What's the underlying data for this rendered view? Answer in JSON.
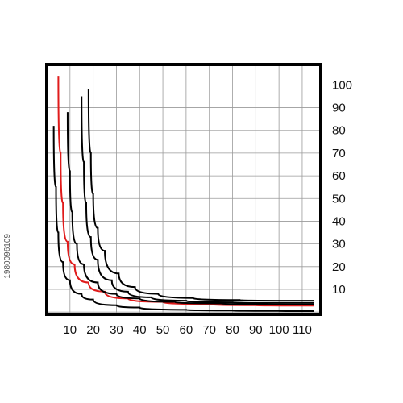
{
  "watermark_id": "1980096109",
  "chart_data": {
    "type": "line",
    "title": "",
    "xlabel": "",
    "ylabel": "",
    "xlim": [
      0,
      118
    ],
    "ylim": [
      -1,
      109
    ],
    "x_ticks": [
      10,
      20,
      30,
      40,
      50,
      60,
      70,
      80,
      90,
      100,
      110
    ],
    "y_ticks": [
      10,
      20,
      30,
      40,
      50,
      60,
      70,
      80,
      90,
      100
    ],
    "grid": true,
    "y_axis_side": "right",
    "series": [
      {
        "color": "#000000",
        "x": [
          3,
          4,
          5,
          7,
          10,
          15,
          20,
          30,
          40,
          60,
          80,
          100,
          115
        ],
        "y": [
          82,
          55,
          35,
          22,
          14,
          8,
          5.5,
          3,
          2,
          1,
          0.7,
          0.5,
          0.4
        ]
      },
      {
        "color": "#e01b1b",
        "x": [
          5,
          6,
          7,
          9,
          12,
          18,
          25,
          35,
          50,
          70,
          90,
          115
        ],
        "y": [
          104,
          70,
          48,
          31,
          21,
          13,
          9,
          6,
          4.5,
          3.5,
          3,
          2.8
        ]
      },
      {
        "color": "#000000",
        "x": [
          9,
          10,
          11,
          13,
          16,
          22,
          30,
          40,
          55,
          75,
          95,
          115
        ],
        "y": [
          88,
          62,
          44,
          30,
          21,
          13,
          8,
          6,
          4.5,
          3.8,
          3.5,
          3.3
        ]
      },
      {
        "color": "#000000",
        "x": [
          15,
          16,
          17,
          19,
          22,
          28,
          35,
          45,
          60,
          80,
          100,
          115
        ],
        "y": [
          95,
          66,
          48,
          33,
          23,
          14,
          9,
          6.5,
          5,
          4.3,
          4,
          4
        ]
      },
      {
        "color": "#000000",
        "x": [
          18,
          19,
          20,
          22,
          25,
          31,
          38,
          48,
          63,
          83,
          103,
          115
        ],
        "y": [
          98,
          70,
          52,
          37,
          27,
          17,
          11,
          8,
          6.2,
          5.3,
          5,
          5
        ]
      }
    ]
  }
}
